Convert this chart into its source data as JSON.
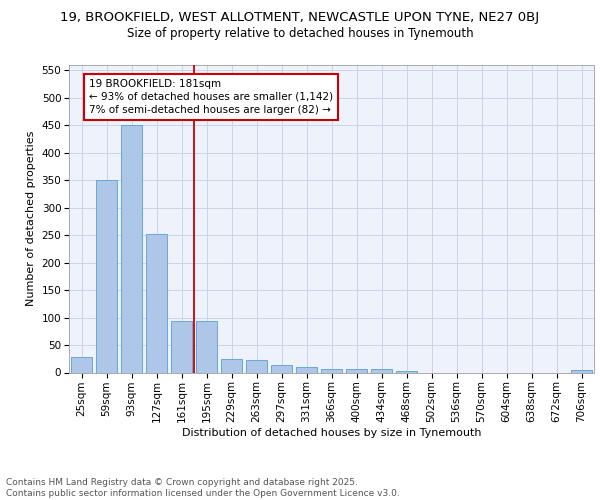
{
  "title1": "19, BROOKFIELD, WEST ALLOTMENT, NEWCASTLE UPON TYNE, NE27 0BJ",
  "title2": "Size of property relative to detached houses in Tynemouth",
  "xlabel": "Distribution of detached houses by size in Tynemouth",
  "ylabel": "Number of detached properties",
  "categories": [
    "25sqm",
    "59sqm",
    "93sqm",
    "127sqm",
    "161sqm",
    "195sqm",
    "229sqm",
    "263sqm",
    "297sqm",
    "331sqm",
    "366sqm",
    "400sqm",
    "434sqm",
    "468sqm",
    "502sqm",
    "536sqm",
    "570sqm",
    "604sqm",
    "638sqm",
    "672sqm",
    "706sqm"
  ],
  "values": [
    28,
    350,
    450,
    253,
    93,
    93,
    25,
    23,
    14,
    10,
    7,
    6,
    6,
    3,
    0,
    0,
    0,
    0,
    0,
    0,
    5
  ],
  "bar_color": "#aec6e8",
  "bar_edge_color": "#5a9fd4",
  "grid_color": "#c8d4e8",
  "bg_color": "#eef2fa",
  "annotation_text": "19 BROOKFIELD: 181sqm\n← 93% of detached houses are smaller (1,142)\n7% of semi-detached houses are larger (82) →",
  "annotation_box_color": "#ffffff",
  "annotation_box_edge": "#cc0000",
  "vline_x": 4.5,
  "vline_color": "#cc0000",
  "ylim": [
    0,
    560
  ],
  "yticks": [
    0,
    50,
    100,
    150,
    200,
    250,
    300,
    350,
    400,
    450,
    500,
    550
  ],
  "footnote": "Contains HM Land Registry data © Crown copyright and database right 2025.\nContains public sector information licensed under the Open Government Licence v3.0.",
  "title1_fontsize": 9.5,
  "title2_fontsize": 8.5,
  "xlabel_fontsize": 8,
  "ylabel_fontsize": 8,
  "tick_fontsize": 7.5,
  "annotation_fontsize": 7.5,
  "footnote_fontsize": 6.5
}
